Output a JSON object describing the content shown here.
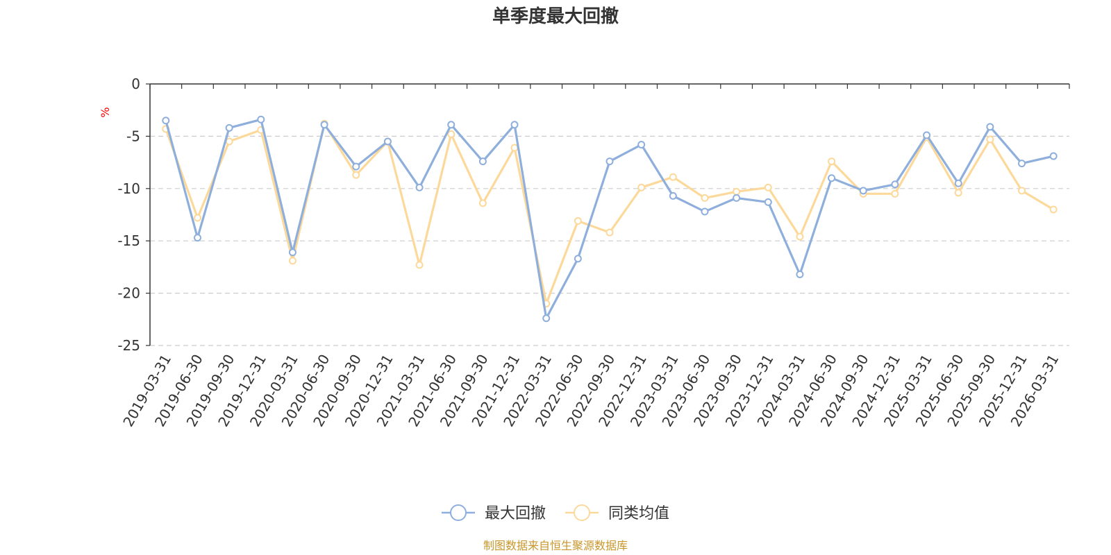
{
  "colors": {
    "series1": "#8eaedc",
    "series2": "#fcd99a",
    "axis": "#333333",
    "grid": "#cccccc",
    "unit": "#ff0000",
    "source": "#c8962a"
  },
  "source_note": "制图数据来自恒生聚源数据库",
  "chart_data": {
    "type": "line",
    "title": "单季度最大回撤",
    "xlabel": "",
    "ylabel": "%",
    "ylim": [
      -25,
      0
    ],
    "yticks": [
      "0",
      "-5",
      "-10",
      "-15",
      "-20",
      "-25"
    ],
    "grid": true,
    "legend_position": "bottom-center",
    "categories": [
      "2019-03-31",
      "2019-06-30",
      "2019-09-30",
      "2019-12-31",
      "2020-03-31",
      "2020-06-30",
      "2020-09-30",
      "2020-12-31",
      "2021-03-31",
      "2021-06-30",
      "2021-09-30",
      "2021-12-31",
      "2022-03-31",
      "2022-06-30",
      "2022-09-30",
      "2022-12-31",
      "2023-03-31",
      "2023-06-30",
      "2023-09-30",
      "2023-12-31",
      "2024-03-31",
      "2024-06-30",
      "2024-09-30",
      "2024-12-31",
      "2025-03-31",
      "2025-06-30",
      "2025-09-30",
      "2025-12-31",
      "2026-03-31"
    ],
    "series": [
      {
        "name": "最大回撤",
        "values": [
          -3.5,
          -14.7,
          -4.2,
          -3.4,
          -16.1,
          -3.9,
          -7.9,
          -5.5,
          -9.9,
          -3.9,
          -7.4,
          -3.9,
          -22.4,
          -16.7,
          -7.4,
          -5.8,
          -10.7,
          -12.2,
          -10.9,
          -11.3,
          -18.2,
          -9.0,
          -10.2,
          -9.6,
          -4.9,
          -9.5,
          -4.1,
          -7.6,
          -6.9
        ]
      },
      {
        "name": "同类均值",
        "values": [
          -4.3,
          -12.8,
          -5.5,
          -4.4,
          -16.9,
          -3.8,
          -8.7,
          -5.5,
          -17.3,
          -4.8,
          -11.4,
          -6.1,
          -21.0,
          -13.1,
          -14.2,
          -9.9,
          -8.9,
          -10.9,
          -10.3,
          -9.9,
          -14.6,
          -7.4,
          -10.5,
          -10.5,
          -5.1,
          -10.4,
          -5.3,
          -10.2,
          -12.0
        ]
      }
    ]
  }
}
